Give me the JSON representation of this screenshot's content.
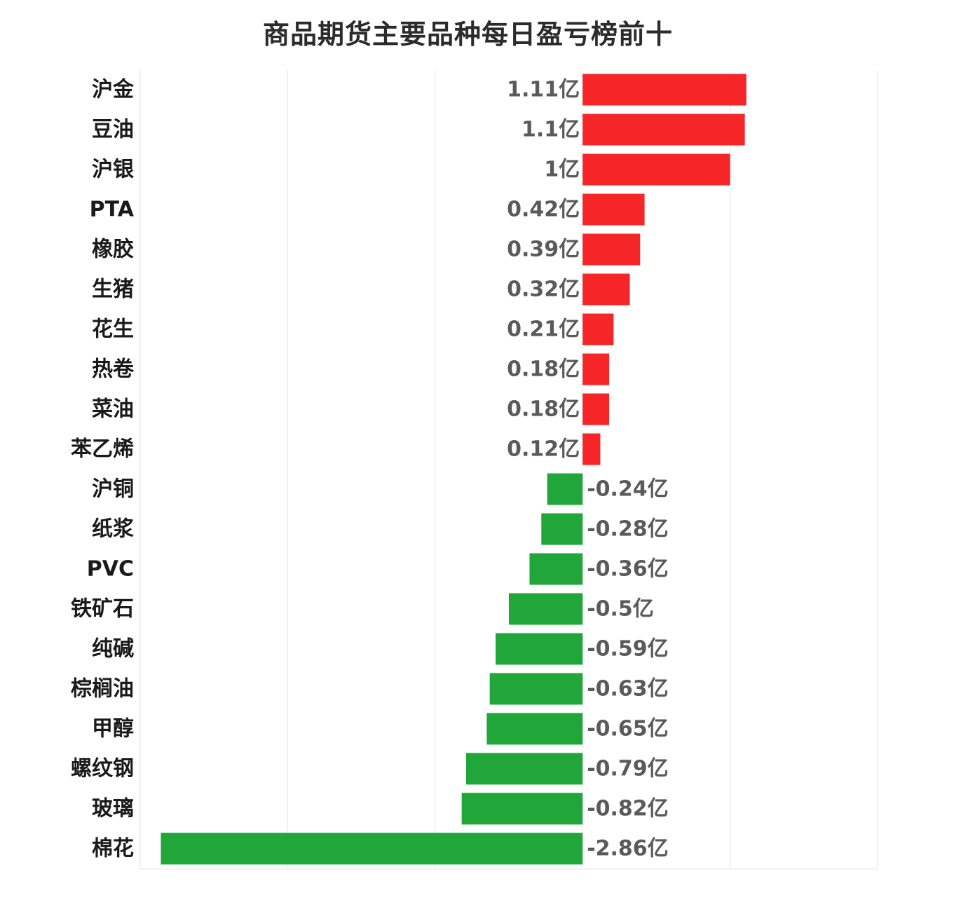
{
  "chart_data": {
    "type": "bar",
    "orientation": "horizontal",
    "title": "商品期货主要品种每日盈亏榜前十",
    "xlim": [
      -3,
      2
    ],
    "grid": true,
    "colors": {
      "positive": "#f52528",
      "negative": "#21a63a"
    },
    "categories": [
      "沪金",
      "豆油",
      "沪银",
      "PTA",
      "橡胶",
      "生猪",
      "花生",
      "热卷",
      "菜油",
      "苯乙烯",
      "沪铜",
      "纸浆",
      "PVC",
      "铁矿石",
      "纯碱",
      "棕榈油",
      "甲醇",
      "螺纹钢",
      "玻璃",
      "棉花"
    ],
    "values": [
      1.11,
      1.1,
      1.0,
      0.42,
      0.39,
      0.32,
      0.21,
      0.18,
      0.18,
      0.12,
      -0.24,
      -0.28,
      -0.36,
      -0.5,
      -0.59,
      -0.63,
      -0.65,
      -0.79,
      -0.82,
      -2.86
    ],
    "data_labels": [
      "1.11亿",
      "1.1亿",
      "1亿",
      "0.42亿",
      "0.39亿",
      "0.32亿",
      "0.21亿",
      "0.18亿",
      "0.18亿",
      "0.12亿",
      "-0.24亿",
      "-0.28亿",
      "-0.36亿",
      "-0.5亿",
      "-0.59亿",
      "-0.63亿",
      "-0.65亿",
      "-0.79亿",
      "-0.82亿",
      "-2.86亿"
    ]
  }
}
